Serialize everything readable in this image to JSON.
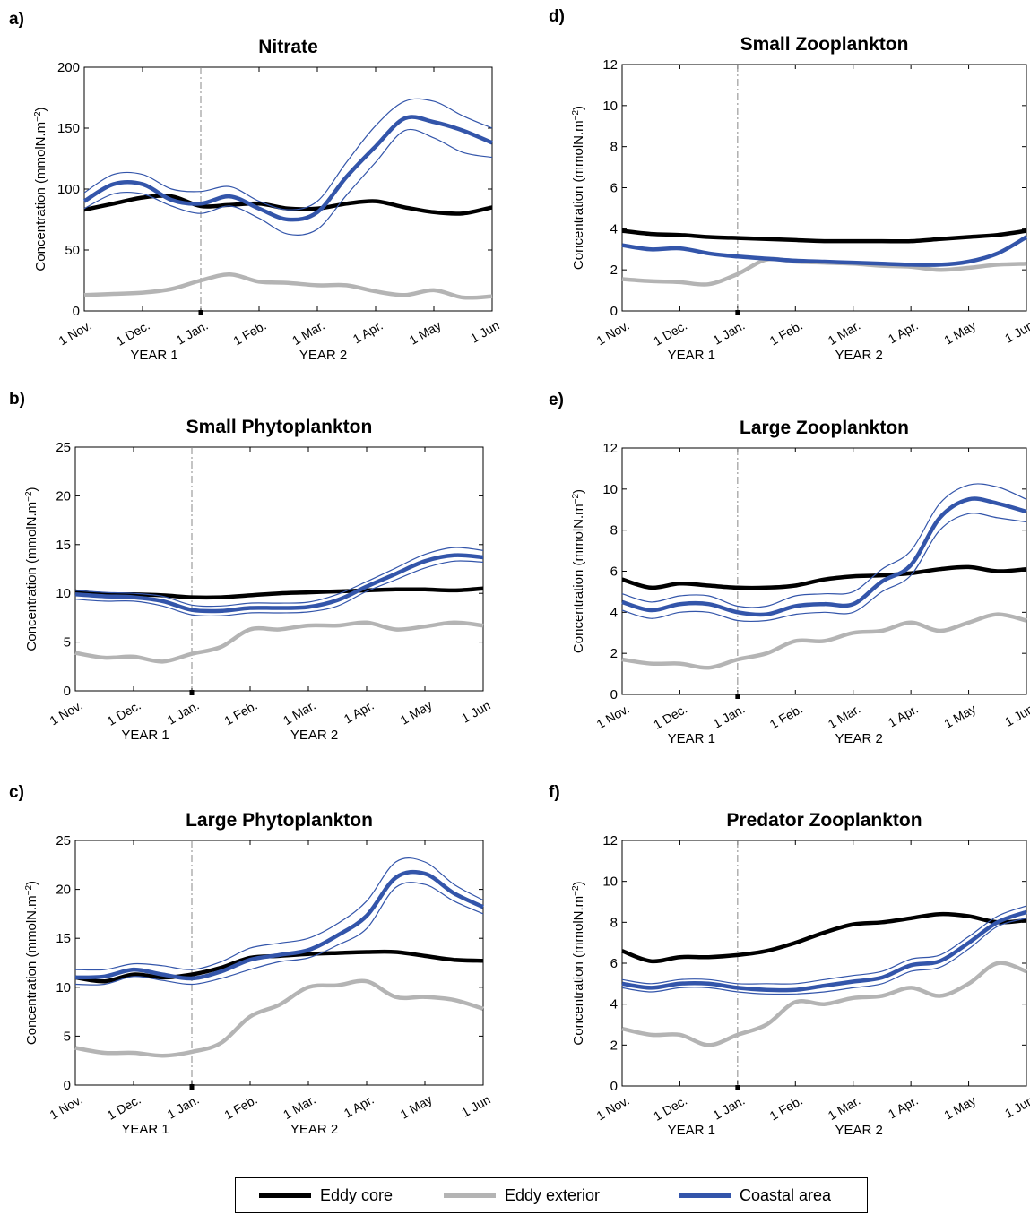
{
  "colors": {
    "eddy_core": "#000000",
    "eddy_exterior": "#b4b4b4",
    "coastal": "#3355aa",
    "dashed": "#888888"
  },
  "legend": {
    "items": [
      {
        "key": "eddy_core",
        "label": "Eddy core"
      },
      {
        "key": "eddy_exterior",
        "label": "Eddy exterior"
      },
      {
        "key": "coastal",
        "label": "Coastal area"
      }
    ]
  },
  "chart_data": [
    {
      "panel": "a)",
      "title": "Nitrate",
      "type": "line",
      "ylabel": "Concentration (mmolN.m^-2)",
      "ylim": [
        0,
        200
      ],
      "yticks": [
        0,
        50,
        100,
        150,
        200
      ],
      "x_tick_labels": [
        "1 Nov.",
        "1 Dec.",
        "1 Jan.",
        "1 Feb.",
        "1 Mar.",
        "1 Apr.",
        "1 May",
        "1 Jun"
      ],
      "year_labels": [
        "YEAR 1",
        "YEAR 2"
      ],
      "x": [
        0,
        0.5,
        1,
        1.5,
        2,
        2.5,
        3,
        3.5,
        4,
        4.5,
        5,
        5.5,
        6,
        6.5,
        7
      ],
      "series": [
        {
          "name": "Eddy core",
          "values": [
            83,
            88,
            93,
            94,
            86,
            87,
            88,
            84,
            84,
            88,
            90,
            85,
            81,
            80,
            85
          ]
        },
        {
          "name": "Eddy exterior",
          "values": [
            13,
            14,
            15,
            18,
            25,
            30,
            24,
            23,
            21,
            21,
            16,
            13,
            17,
            11,
            12
          ]
        },
        {
          "name": "Coastal area",
          "values": [
            90,
            104,
            104,
            91,
            88,
            94,
            84,
            75,
            81,
            110,
            135,
            158,
            155,
            148,
            138
          ],
          "upper": [
            97,
            112,
            112,
            100,
            98,
            102,
            90,
            83,
            90,
            122,
            152,
            172,
            172,
            160,
            150
          ],
          "lower": [
            84,
            96,
            96,
            86,
            80,
            86,
            76,
            63,
            67,
            95,
            122,
            148,
            142,
            130,
            126
          ]
        }
      ]
    },
    {
      "panel": "b)",
      "title": "Small Phytoplankton",
      "type": "line",
      "ylabel": "Concentration (mmolN.m^-2)",
      "ylim": [
        0,
        25
      ],
      "yticks": [
        0,
        5,
        10,
        15,
        20,
        25
      ],
      "x_tick_labels": [
        "1 Nov.",
        "1 Dec.",
        "1 Jan.",
        "1 Feb.",
        "1 Mar.",
        "1 Apr.",
        "1 May",
        "1 Jun"
      ],
      "year_labels": [
        "YEAR 1",
        "YEAR 2"
      ],
      "x": [
        0,
        0.5,
        1,
        1.5,
        2,
        2.5,
        3,
        3.5,
        4,
        4.5,
        5,
        5.5,
        6,
        6.5,
        7
      ],
      "series": [
        {
          "name": "Eddy core",
          "values": [
            10.2,
            9.9,
            9.9,
            9.8,
            9.6,
            9.6,
            9.8,
            10.0,
            10.1,
            10.2,
            10.3,
            10.4,
            10.4,
            10.3,
            10.5
          ]
        },
        {
          "name": "Eddy exterior",
          "values": [
            3.9,
            3.4,
            3.5,
            3.0,
            3.8,
            4.5,
            6.3,
            6.3,
            6.7,
            6.7,
            7.0,
            6.3,
            6.6,
            7.0,
            6.7
          ]
        },
        {
          "name": "Coastal area",
          "values": [
            9.9,
            9.7,
            9.6,
            9.2,
            8.3,
            8.2,
            8.5,
            8.5,
            8.6,
            9.3,
            10.7,
            12.0,
            13.3,
            13.9,
            13.7
          ],
          "upper": [
            10.3,
            10.1,
            10.0,
            9.7,
            8.8,
            8.7,
            9.0,
            9.0,
            9.1,
            9.9,
            11.2,
            12.6,
            14.0,
            14.7,
            14.4
          ],
          "lower": [
            9.4,
            9.2,
            9.2,
            8.7,
            7.8,
            7.7,
            8.0,
            8.0,
            8.1,
            8.7,
            10.2,
            11.4,
            12.6,
            13.3,
            13.2
          ]
        }
      ]
    },
    {
      "panel": "c)",
      "title": "Large Phytoplankton",
      "type": "line",
      "ylabel": "Concentration (mmolN.m^-2)",
      "ylim": [
        0,
        25
      ],
      "yticks": [
        0,
        5,
        10,
        15,
        20,
        25
      ],
      "x_tick_labels": [
        "1 Nov.",
        "1 Dec.",
        "1 Jan.",
        "1 Feb.",
        "1 Mar.",
        "1 Apr.",
        "1 May",
        "1 Jun"
      ],
      "year_labels": [
        "YEAR 1",
        "YEAR 2"
      ],
      "x": [
        0,
        0.5,
        1,
        1.5,
        2,
        2.5,
        3,
        3.5,
        4,
        4.5,
        5,
        5.5,
        6,
        6.5,
        7
      ],
      "series": [
        {
          "name": "Eddy core",
          "values": [
            11.0,
            10.6,
            11.3,
            11.0,
            11.3,
            12.0,
            13.0,
            13.2,
            13.4,
            13.5,
            13.6,
            13.6,
            13.2,
            12.8,
            12.7
          ]
        },
        {
          "name": "Eddy exterior",
          "values": [
            3.8,
            3.3,
            3.3,
            3.0,
            3.4,
            4.3,
            7.0,
            8.2,
            10.0,
            10.2,
            10.6,
            9.0,
            9.0,
            8.7,
            7.8
          ]
        },
        {
          "name": "Coastal area",
          "values": [
            11.0,
            11.1,
            11.8,
            11.3,
            10.9,
            11.6,
            12.8,
            13.3,
            13.8,
            15.3,
            17.3,
            21.2,
            21.6,
            19.6,
            18.2
          ],
          "upper": [
            11.8,
            11.8,
            12.4,
            12.2,
            11.8,
            12.6,
            14.0,
            14.5,
            15.0,
            16.5,
            18.8,
            22.8,
            22.8,
            20.5,
            18.9
          ],
          "lower": [
            10.3,
            10.3,
            11.1,
            10.7,
            10.3,
            10.9,
            11.8,
            12.6,
            13.0,
            14.3,
            16.0,
            20.2,
            20.5,
            18.8,
            17.5
          ]
        }
      ]
    },
    {
      "panel": "d)",
      "title": "Small Zooplankton",
      "type": "line",
      "ylabel": "Concentration (mmolN.m^-2)",
      "ylim": [
        0,
        12
      ],
      "yticks": [
        0,
        2,
        4,
        6,
        8,
        10,
        12
      ],
      "x_tick_labels": [
        "1 Nov.",
        "1 Dec.",
        "1 Jan.",
        "1 Feb.",
        "1 Mar.",
        "1 Apr.",
        "1 May",
        "1 Jun"
      ],
      "year_labels": [
        "YEAR 1",
        "YEAR 2"
      ],
      "x": [
        0,
        0.5,
        1,
        1.5,
        2,
        2.5,
        3,
        3.5,
        4,
        4.5,
        5,
        5.5,
        6,
        6.5,
        7
      ],
      "series": [
        {
          "name": "Eddy core",
          "values": [
            3.9,
            3.75,
            3.7,
            3.6,
            3.55,
            3.5,
            3.45,
            3.4,
            3.4,
            3.4,
            3.4,
            3.5,
            3.6,
            3.7,
            3.9
          ]
        },
        {
          "name": "Eddy exterior",
          "values": [
            1.55,
            1.45,
            1.4,
            1.3,
            1.8,
            2.5,
            2.4,
            2.35,
            2.3,
            2.2,
            2.15,
            2.0,
            2.1,
            2.25,
            2.3
          ]
        },
        {
          "name": "Coastal area",
          "values": [
            3.2,
            3.0,
            3.05,
            2.8,
            2.65,
            2.55,
            2.45,
            2.4,
            2.35,
            2.3,
            2.25,
            2.25,
            2.4,
            2.8,
            3.6
          ]
        }
      ]
    },
    {
      "panel": "e)",
      "title": "Large Zooplankton",
      "type": "line",
      "ylabel": "Concentration (mmolN.m^-2)",
      "ylim": [
        0,
        12
      ],
      "yticks": [
        0,
        2,
        4,
        6,
        8,
        10,
        12
      ],
      "x_tick_labels": [
        "1 Nov.",
        "1 Dec.",
        "1 Jan.",
        "1 Feb.",
        "1 Mar.",
        "1 Apr.",
        "1 May",
        "1 Jun"
      ],
      "year_labels": [
        "YEAR 1",
        "YEAR 2"
      ],
      "x": [
        0,
        0.5,
        1,
        1.5,
        2,
        2.5,
        3,
        3.5,
        4,
        4.5,
        5,
        5.5,
        6,
        6.5,
        7
      ],
      "series": [
        {
          "name": "Eddy core",
          "values": [
            5.6,
            5.2,
            5.4,
            5.3,
            5.2,
            5.2,
            5.3,
            5.6,
            5.75,
            5.8,
            5.9,
            6.1,
            6.2,
            6.0,
            6.1
          ]
        },
        {
          "name": "Eddy exterior",
          "values": [
            1.7,
            1.5,
            1.5,
            1.3,
            1.7,
            2.0,
            2.6,
            2.6,
            3.0,
            3.1,
            3.5,
            3.1,
            3.5,
            3.9,
            3.6
          ]
        },
        {
          "name": "Coastal area",
          "values": [
            4.5,
            4.1,
            4.4,
            4.4,
            4.0,
            3.9,
            4.3,
            4.4,
            4.4,
            5.5,
            6.3,
            8.6,
            9.5,
            9.3,
            8.9
          ],
          "upper": [
            4.9,
            4.5,
            4.8,
            4.8,
            4.3,
            4.3,
            4.8,
            4.9,
            5.0,
            6.1,
            7.0,
            9.3,
            10.2,
            10.1,
            9.5
          ],
          "lower": [
            4.1,
            3.7,
            4.0,
            4.0,
            3.6,
            3.6,
            3.9,
            4.0,
            4.0,
            5.0,
            5.8,
            8.0,
            8.8,
            8.6,
            8.4
          ]
        }
      ]
    },
    {
      "panel": "f)",
      "title": "Predator Zooplankton",
      "type": "line",
      "ylabel": "Concentration (mmolN.m^-2)",
      "ylim": [
        0,
        12
      ],
      "yticks": [
        0,
        2,
        4,
        6,
        8,
        10,
        12
      ],
      "x_tick_labels": [
        "1 Nov.",
        "1 Dec.",
        "1 Jan.",
        "1 Feb.",
        "1 Mar.",
        "1 Apr.",
        "1 May",
        "1 Jun"
      ],
      "year_labels": [
        "YEAR 1",
        "YEAR 2"
      ],
      "x": [
        0,
        0.5,
        1,
        1.5,
        2,
        2.5,
        3,
        3.5,
        4,
        4.5,
        5,
        5.5,
        6,
        6.5,
        7
      ],
      "series": [
        {
          "name": "Eddy core",
          "values": [
            6.6,
            6.1,
            6.3,
            6.3,
            6.4,
            6.6,
            7.0,
            7.5,
            7.9,
            8.0,
            8.2,
            8.4,
            8.3,
            8.0,
            8.1
          ]
        },
        {
          "name": "Eddy exterior",
          "values": [
            2.8,
            2.5,
            2.5,
            2.0,
            2.5,
            3.0,
            4.1,
            4.0,
            4.3,
            4.4,
            4.8,
            4.4,
            5.0,
            6.0,
            5.6
          ]
        },
        {
          "name": "Coastal area",
          "values": [
            5.0,
            4.8,
            5.0,
            5.0,
            4.8,
            4.7,
            4.7,
            4.9,
            5.1,
            5.3,
            5.9,
            6.1,
            7.0,
            8.0,
            8.5
          ],
          "upper": [
            5.2,
            5.0,
            5.2,
            5.2,
            5.0,
            5.0,
            5.0,
            5.2,
            5.4,
            5.6,
            6.2,
            6.4,
            7.3,
            8.3,
            8.8
          ],
          "lower": [
            4.8,
            4.6,
            4.8,
            4.8,
            4.6,
            4.5,
            4.5,
            4.6,
            4.8,
            5.0,
            5.6,
            5.8,
            6.7,
            7.8,
            8.2
          ]
        }
      ]
    }
  ]
}
